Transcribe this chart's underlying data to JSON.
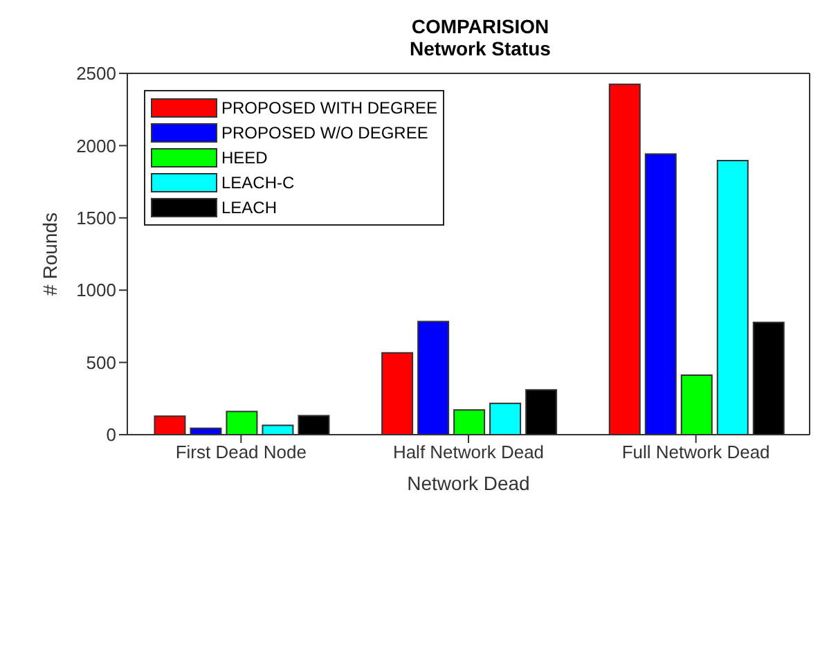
{
  "chart_data": {
    "type": "bar",
    "title": "COMPARISION",
    "subtitle": "Network Status",
    "xlabel": "Network Dead",
    "ylabel": "# Rounds",
    "categories": [
      "First Dead Node",
      "Half Network Dead",
      "Full Network Dead"
    ],
    "series": [
      {
        "name": "PROPOSED WITH DEGREE",
        "color": "#ff0000",
        "values": [
          128,
          566,
          2424
        ]
      },
      {
        "name": "PROPOSED W/O DEGREE",
        "color": "#0000ff",
        "values": [
          44,
          783,
          1942
        ]
      },
      {
        "name": "HEED",
        "color": "#00ff00",
        "values": [
          161,
          171,
          412
        ]
      },
      {
        "name": "LEACH-C",
        "color": "#00ffff",
        "values": [
          65,
          217,
          1897
        ]
      },
      {
        "name": "LEACH",
        "color": "#000000",
        "values": [
          132,
          310,
          777
        ]
      }
    ],
    "ylim": [
      0,
      2500
    ],
    "yticks": [
      0,
      500,
      1000,
      1500,
      2000,
      2500
    ],
    "grid": false,
    "legend": "top left"
  }
}
